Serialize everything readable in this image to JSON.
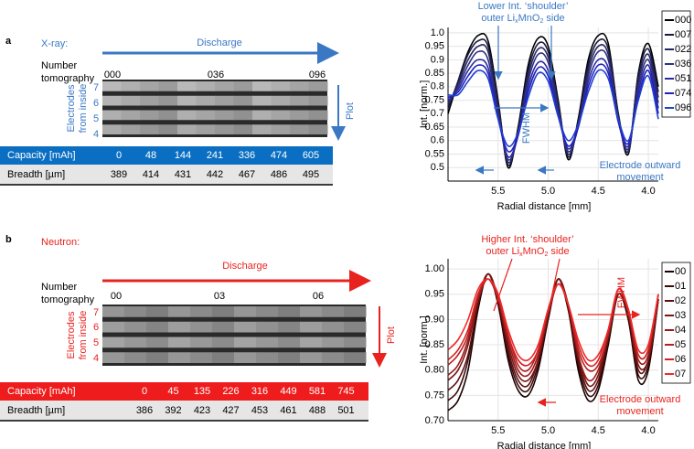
{
  "panels": [
    {
      "label": "a",
      "modality": "X-ray:",
      "direction": "Discharge",
      "number_label": [
        "Number",
        "tomography"
      ],
      "tomography_numbers": [
        "000",
        "036",
        "096"
      ],
      "electrodes_label": [
        "Electrodes",
        "from inside"
      ],
      "electrode_numbers": [
        "7",
        "6",
        "5",
        "4"
      ],
      "plot_label": "Plot",
      "table": {
        "rows": [
          [
            "Capacity [mAh]",
            0,
            48,
            144,
            241,
            336,
            474,
            605
          ],
          [
            "Breadth [µm]",
            389,
            414,
            431,
            442,
            467,
            486,
            495
          ]
        ]
      }
    },
    {
      "label": "b",
      "modality": "Neutron:",
      "direction": "Discharge",
      "number_label": [
        "Number",
        "tomography"
      ],
      "tomography_numbers": [
        "00",
        "03",
        "06"
      ],
      "electrodes_label": [
        "Electrodes",
        "from inside"
      ],
      "electrode_numbers": [
        "7",
        "6",
        "5",
        "4"
      ],
      "plot_label": "Plot",
      "table": {
        "rows": [
          [
            "Capacity [mAh]",
            0,
            45,
            135,
            226,
            316,
            449,
            581,
            745
          ],
          [
            "Breadth [µm]",
            386,
            392,
            423,
            427,
            453,
            461,
            488,
            501
          ]
        ]
      }
    }
  ],
  "chart_data": [
    {
      "type": "line",
      "x_label": "Radial distance [mm]",
      "y_label": "Int. [norm.]",
      "annotations": {
        "shoulder": [
          "Lower Int. ‘shoulder’",
          [
            "outer Li",
            "x",
            "MnO",
            "2",
            " side"
          ]
        ],
        "fwhm": "FWHM",
        "movement": [
          "Electrode outward",
          "movement"
        ]
      },
      "xlim": [
        6.0,
        3.9
      ],
      "xticks": [
        5.5,
        {
          "value": 5,
          "label": "5.0"
        },
        4.5,
        {
          "value": 4,
          "label": "4.0"
        }
      ],
      "ylim": [
        0.45,
        1.02
      ],
      "yticks": [
        {
          "value": 0.5,
          "label": "0.5"
        },
        0.55,
        0.6,
        0.65,
        0.7,
        0.75,
        0.8,
        0.85,
        0.9,
        0.95,
        {
          "value": 1,
          "label": "1.0"
        }
      ],
      "grid": true,
      "legend": "right",
      "x": [
        6.0,
        5.9,
        5.8,
        5.7,
        5.6,
        5.5,
        5.4,
        5.3,
        5.2,
        5.1,
        5.0,
        4.9,
        4.8,
        4.7,
        4.6,
        4.5,
        4.4,
        4.3,
        4.2,
        4.1,
        4.0,
        3.9
      ],
      "series": [
        {
          "name": "000",
          "color": "#000000",
          "values": [
            0.7,
            0.82,
            0.93,
            0.99,
            0.97,
            0.75,
            0.5,
            0.65,
            0.88,
            0.98,
            0.95,
            0.75,
            0.53,
            0.68,
            0.9,
            0.99,
            0.96,
            0.7,
            0.55,
            0.85,
            0.96,
            0.8
          ]
        },
        {
          "name": "007",
          "color": "#1a1a40",
          "values": [
            0.72,
            0.82,
            0.92,
            0.97,
            0.95,
            0.74,
            0.51,
            0.64,
            0.86,
            0.96,
            0.93,
            0.74,
            0.54,
            0.67,
            0.88,
            0.97,
            0.94,
            0.7,
            0.56,
            0.84,
            0.94,
            0.78
          ]
        },
        {
          "name": "022",
          "color": "#262660",
          "values": [
            0.73,
            0.81,
            0.9,
            0.95,
            0.93,
            0.72,
            0.52,
            0.63,
            0.84,
            0.94,
            0.91,
            0.73,
            0.55,
            0.66,
            0.86,
            0.95,
            0.92,
            0.69,
            0.56,
            0.82,
            0.92,
            0.76
          ]
        },
        {
          "name": "036",
          "color": "#303080",
          "values": [
            0.74,
            0.8,
            0.88,
            0.93,
            0.9,
            0.7,
            0.53,
            0.62,
            0.82,
            0.92,
            0.89,
            0.71,
            0.56,
            0.65,
            0.84,
            0.93,
            0.9,
            0.68,
            0.57,
            0.8,
            0.9,
            0.74
          ]
        },
        {
          "name": "051",
          "color": "#2a2aa0",
          "values": [
            0.75,
            0.79,
            0.86,
            0.9,
            0.87,
            0.69,
            0.54,
            0.62,
            0.8,
            0.89,
            0.86,
            0.7,
            0.57,
            0.65,
            0.82,
            0.9,
            0.87,
            0.67,
            0.58,
            0.78,
            0.88,
            0.72
          ]
        },
        {
          "name": "074",
          "color": "#2020c0",
          "values": [
            0.76,
            0.78,
            0.84,
            0.88,
            0.85,
            0.68,
            0.56,
            0.62,
            0.78,
            0.87,
            0.84,
            0.69,
            0.58,
            0.65,
            0.8,
            0.88,
            0.85,
            0.67,
            0.59,
            0.76,
            0.86,
            0.7
          ]
        },
        {
          "name": "096",
          "color": "#2040d0",
          "values": [
            0.77,
            0.77,
            0.82,
            0.86,
            0.83,
            0.68,
            0.58,
            0.63,
            0.76,
            0.85,
            0.82,
            0.69,
            0.6,
            0.66,
            0.78,
            0.86,
            0.83,
            0.68,
            0.6,
            0.75,
            0.84,
            0.68
          ]
        }
      ]
    },
    {
      "type": "line",
      "x_label": "Radial distance [mm]",
      "y_label": "Int. [norm.]",
      "annotations": {
        "shoulder": [
          "Higher Int. ‘shoulder’",
          [
            "outer Li",
            "x",
            "MnO",
            "2",
            " side"
          ]
        ],
        "fwhm": "FWHM",
        "movement": [
          "Electrode outward",
          "movement"
        ]
      },
      "xlim": [
        6.0,
        3.9
      ],
      "xticks": [
        5.5,
        {
          "value": 5,
          "label": "5.0"
        },
        4.5,
        {
          "value": 4,
          "label": "4.0"
        }
      ],
      "ylim": [
        0.7,
        1.02
      ],
      "yticks": [
        {
          "value": 0.7,
          "label": "0.70"
        },
        0.75,
        {
          "value": 0.8,
          "label": "0.80"
        },
        0.85,
        {
          "value": 0.9,
          "label": "0.90"
        },
        0.95,
        {
          "value": 1,
          "label": "1.00"
        }
      ],
      "grid": true,
      "legend": "right",
      "x": [
        6.0,
        5.9,
        5.8,
        5.7,
        5.6,
        5.5,
        5.4,
        5.3,
        5.2,
        5.1,
        5.0,
        4.9,
        4.8,
        4.7,
        4.6,
        4.5,
        4.4,
        4.3,
        4.2,
        4.1,
        4.0,
        3.9
      ],
      "series": [
        {
          "name": "00",
          "color": "#1a0000",
          "values": [
            0.72,
            0.74,
            0.8,
            0.92,
            0.99,
            0.93,
            0.82,
            0.76,
            0.75,
            0.8,
            0.9,
            0.98,
            0.92,
            0.8,
            0.74,
            0.76,
            0.85,
            0.95,
            0.9,
            0.78,
            0.8,
            0.94
          ]
        },
        {
          "name": "01",
          "color": "#3a0a0a",
          "values": [
            0.74,
            0.76,
            0.82,
            0.93,
            0.99,
            0.93,
            0.83,
            0.77,
            0.76,
            0.81,
            0.9,
            0.98,
            0.92,
            0.81,
            0.75,
            0.77,
            0.86,
            0.95,
            0.9,
            0.79,
            0.81,
            0.94
          ]
        },
        {
          "name": "02",
          "color": "#5a1010",
          "values": [
            0.76,
            0.78,
            0.83,
            0.93,
            0.99,
            0.94,
            0.84,
            0.78,
            0.77,
            0.82,
            0.91,
            0.98,
            0.92,
            0.82,
            0.76,
            0.78,
            0.86,
            0.95,
            0.91,
            0.8,
            0.82,
            0.94
          ]
        },
        {
          "name": "03",
          "color": "#7a1515",
          "values": [
            0.78,
            0.8,
            0.85,
            0.94,
            0.99,
            0.94,
            0.85,
            0.79,
            0.78,
            0.82,
            0.91,
            0.98,
            0.93,
            0.83,
            0.77,
            0.79,
            0.87,
            0.95,
            0.91,
            0.81,
            0.82,
            0.94
          ]
        },
        {
          "name": "04",
          "color": "#9a1a1a",
          "values": [
            0.79,
            0.81,
            0.86,
            0.94,
            0.98,
            0.94,
            0.86,
            0.8,
            0.79,
            0.83,
            0.91,
            0.97,
            0.93,
            0.83,
            0.78,
            0.8,
            0.87,
            0.96,
            0.91,
            0.82,
            0.83,
            0.95
          ]
        },
        {
          "name": "05",
          "color": "#b81e1e",
          "values": [
            0.81,
            0.83,
            0.87,
            0.95,
            0.98,
            0.94,
            0.87,
            0.81,
            0.8,
            0.84,
            0.92,
            0.97,
            0.93,
            0.84,
            0.8,
            0.81,
            0.87,
            0.96,
            0.92,
            0.83,
            0.84,
            0.95
          ]
        },
        {
          "name": "06",
          "color": "#d42020",
          "values": [
            0.82,
            0.84,
            0.88,
            0.95,
            0.98,
            0.95,
            0.87,
            0.82,
            0.81,
            0.84,
            0.92,
            0.97,
            0.93,
            0.85,
            0.81,
            0.82,
            0.88,
            0.96,
            0.92,
            0.83,
            0.84,
            0.95
          ]
        },
        {
          "name": "07",
          "color": "#ee2a2a",
          "values": [
            0.84,
            0.86,
            0.9,
            0.96,
            0.98,
            0.95,
            0.88,
            0.83,
            0.82,
            0.85,
            0.92,
            0.97,
            0.93,
            0.86,
            0.82,
            0.83,
            0.88,
            0.96,
            0.92,
            0.84,
            0.85,
            0.95
          ]
        }
      ]
    }
  ]
}
